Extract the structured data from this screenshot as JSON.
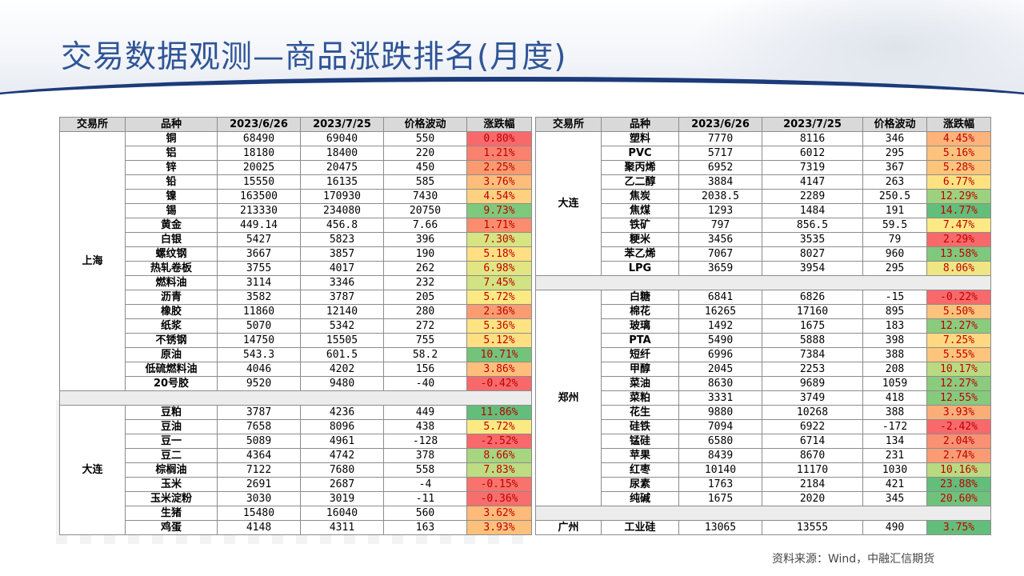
{
  "title": "交易数据观测—商品涨跌排名(月度)",
  "source": "资料来源：Wind，中融汇信期货",
  "headers": [
    "交易所",
    "品种",
    "2023/6/26",
    "2023/7/25",
    "价格波动",
    "涨跌幅"
  ],
  "left_table": {
    "groups": [
      {
        "exchange": "上海",
        "rows": [
          {
            "name": "铜",
            "p1": "68490",
            "p2": "69040",
            "diff": "550",
            "chg": "0.80%",
            "color": "#f8696b"
          },
          {
            "name": "铝",
            "p1": "18180",
            "p2": "18400",
            "diff": "220",
            "chg": "1.21%",
            "color": "#f9816d"
          },
          {
            "name": "锌",
            "p1": "20025",
            "p2": "20475",
            "diff": "450",
            "chg": "2.25%",
            "color": "#fa9a70"
          },
          {
            "name": "铅",
            "p1": "15550",
            "p2": "16135",
            "diff": "585",
            "chg": "3.76%",
            "color": "#fdbd7b"
          },
          {
            "name": "镍",
            "p1": "163500",
            "p2": "170930",
            "diff": "7430",
            "chg": "4.54%",
            "color": "#fed180"
          },
          {
            "name": "锡",
            "p1": "213330",
            "p2": "234080",
            "diff": "20750",
            "chg": "9.73%",
            "color": "#7fc97c"
          },
          {
            "name": "黄金",
            "p1": "449.14",
            "p2": "456.8",
            "diff": "7.66",
            "chg": "1.71%",
            "color": "#f98d6e"
          },
          {
            "name": "白银",
            "p1": "5427",
            "p2": "5823",
            "diff": "396",
            "chg": "7.30%",
            "color": "#d6e482"
          },
          {
            "name": "螺纹钢",
            "p1": "3667",
            "p2": "3857",
            "diff": "190",
            "chg": "5.18%",
            "color": "#fee082"
          },
          {
            "name": "热轧卷板",
            "p1": "3755",
            "p2": "4017",
            "diff": "262",
            "chg": "6.98%",
            "color": "#e1e683"
          },
          {
            "name": "燃料油",
            "p1": "3114",
            "p2": "3346",
            "diff": "232",
            "chg": "7.45%",
            "color": "#d1e382"
          },
          {
            "name": "沥青",
            "p1": "3582",
            "p2": "3787",
            "diff": "205",
            "chg": "5.72%",
            "color": "#fbe983"
          },
          {
            "name": "橡胶",
            "p1": "11860",
            "p2": "12140",
            "diff": "280",
            "chg": "2.36%",
            "color": "#fa9c71"
          },
          {
            "name": "纸浆",
            "p1": "5070",
            "p2": "5342",
            "diff": "272",
            "chg": "5.36%",
            "color": "#fee383"
          },
          {
            "name": "不锈钢",
            "p1": "14750",
            "p2": "15505",
            "diff": "755",
            "chg": "5.12%",
            "color": "#fedf82"
          },
          {
            "name": "原油",
            "p1": "543.3",
            "p2": "601.5",
            "diff": "58.2",
            "chg": "10.71%",
            "color": "#73c47b"
          },
          {
            "name": "低硫燃料油",
            "p1": "4046",
            "p2": "4202",
            "diff": "156",
            "chg": "3.86%",
            "color": "#fdbf7b"
          },
          {
            "name": "20号胶",
            "p1": "9520",
            "p2": "9480",
            "diff": "-40",
            "chg": "-0.42%",
            "color": "#f8696b"
          }
        ]
      },
      {
        "exchange": "大连",
        "rows": [
          {
            "name": "豆粕",
            "p1": "3787",
            "p2": "4236",
            "diff": "449",
            "chg": "11.86%",
            "color": "#63be7b"
          },
          {
            "name": "豆油",
            "p1": "7658",
            "p2": "8096",
            "diff": "438",
            "chg": "5.72%",
            "color": "#fbe983"
          },
          {
            "name": "豆一",
            "p1": "5089",
            "p2": "4961",
            "diff": "-128",
            "chg": "-2.52%",
            "color": "#f8696b"
          },
          {
            "name": "豆二",
            "p1": "4364",
            "p2": "4742",
            "diff": "378",
            "chg": "8.66%",
            "color": "#a7d580"
          },
          {
            "name": "棕榈油",
            "p1": "7122",
            "p2": "7680",
            "diff": "558",
            "chg": "7.83%",
            "color": "#bedc81"
          },
          {
            "name": "玉米",
            "p1": "2691",
            "p2": "2687",
            "diff": "-4",
            "chg": "-0.15%",
            "color": "#f8736c"
          },
          {
            "name": "玉米淀粉",
            "p1": "3030",
            "p2": "3019",
            "diff": "-11",
            "chg": "-0.36%",
            "color": "#f86e6c"
          },
          {
            "name": "生猪",
            "p1": "15480",
            "p2": "16040",
            "diff": "560",
            "chg": "3.62%",
            "color": "#fdba7a"
          },
          {
            "name": "鸡蛋",
            "p1": "4148",
            "p2": "4311",
            "diff": "163",
            "chg": "3.93%",
            "color": "#fdc17c"
          }
        ]
      }
    ]
  },
  "right_table": {
    "groups": [
      {
        "exchange": "大连",
        "rows": [
          {
            "name": "塑料",
            "p1": "7770",
            "p2": "8116",
            "diff": "346",
            "chg": "4.45%",
            "color": "#fdb37a"
          },
          {
            "name": "PVC",
            "p1": "5717",
            "p2": "6012",
            "diff": "295",
            "chg": "5.16%",
            "color": "#fdc27c"
          },
          {
            "name": "聚丙烯",
            "p1": "6952",
            "p2": "7319",
            "diff": "367",
            "chg": "5.28%",
            "color": "#fdc47c"
          },
          {
            "name": "乙二醇",
            "p1": "3884",
            "p2": "4147",
            "diff": "263",
            "chg": "6.77%",
            "color": "#fee282"
          },
          {
            "name": "焦炭",
            "p1": "2038.5",
            "p2": "2289",
            "diff": "250.5",
            "chg": "12.29%",
            "color": "#9cd27f"
          },
          {
            "name": "焦煤",
            "p1": "1293",
            "p2": "1484",
            "diff": "191",
            "chg": "14.77%",
            "color": "#63be7b"
          },
          {
            "name": "铁矿",
            "p1": "797",
            "p2": "856.5",
            "diff": "59.5",
            "chg": "7.47%",
            "color": "#fbe983"
          },
          {
            "name": "粳米",
            "p1": "3456",
            "p2": "3535",
            "diff": "79",
            "chg": "2.29%",
            "color": "#f8696b"
          },
          {
            "name": "苯乙烯",
            "p1": "7067",
            "p2": "8027",
            "diff": "960",
            "chg": "13.58%",
            "color": "#7fc87d"
          },
          {
            "name": "LPG",
            "p1": "3659",
            "p2": "3954",
            "diff": "295",
            "chg": "8.06%",
            "color": "#eee683"
          }
        ]
      },
      {
        "exchange": "郑州",
        "rows": [
          {
            "name": "白糖",
            "p1": "6841",
            "p2": "6826",
            "diff": "-15",
            "chg": "-0.22%",
            "color": "#f8696b"
          },
          {
            "name": "棉花",
            "p1": "16265",
            "p2": "17160",
            "diff": "895",
            "chg": "5.50%",
            "color": "#fdc37c"
          },
          {
            "name": "玻璃",
            "p1": "1492",
            "p2": "1675",
            "diff": "183",
            "chg": "12.27%",
            "color": "#8acb7e"
          },
          {
            "name": "PTA",
            "p1": "5490",
            "p2": "5888",
            "diff": "398",
            "chg": "7.25%",
            "color": "#fed981"
          },
          {
            "name": "短纤",
            "p1": "6996",
            "p2": "7384",
            "diff": "388",
            "chg": "5.55%",
            "color": "#fdc47c"
          },
          {
            "name": "甲醇",
            "p1": "2045",
            "p2": "2253",
            "diff": "208",
            "chg": "10.17%",
            "color": "#b9da81"
          },
          {
            "name": "菜油",
            "p1": "8630",
            "p2": "9689",
            "diff": "1059",
            "chg": "12.27%",
            "color": "#8acb7e"
          },
          {
            "name": "菜粕",
            "p1": "3331",
            "p2": "3749",
            "diff": "418",
            "chg": "12.55%",
            "color": "#86ca7e"
          },
          {
            "name": "花生",
            "p1": "9880",
            "p2": "10268",
            "diff": "388",
            "chg": "3.93%",
            "color": "#fbad78"
          },
          {
            "name": "硅铁",
            "p1": "7094",
            "p2": "6922",
            "diff": "-172",
            "chg": "-2.42%",
            "color": "#f8696b"
          },
          {
            "name": "锰硅",
            "p1": "6580",
            "p2": "6714",
            "diff": "134",
            "chg": "2.04%",
            "color": "#f99172"
          },
          {
            "name": "苹果",
            "p1": "8439",
            "p2": "8670",
            "diff": "231",
            "chg": "2.74%",
            "color": "#fa9b74"
          },
          {
            "name": "红枣",
            "p1": "10140",
            "p2": "11170",
            "diff": "1030",
            "chg": "10.16%",
            "color": "#b9da81"
          },
          {
            "name": "尿素",
            "p1": "1763",
            "p2": "2184",
            "diff": "421",
            "chg": "23.88%",
            "color": "#63be7b"
          },
          {
            "name": "纯碱",
            "p1": "1675",
            "p2": "2020",
            "diff": "345",
            "chg": "20.60%",
            "color": "#6fc27c"
          }
        ]
      },
      {
        "exchange": "广州",
        "rows": [
          {
            "name": "工业硅",
            "p1": "13065",
            "p2": "13555",
            "diff": "490",
            "chg": "3.75%",
            "color": "#63be7b"
          }
        ]
      }
    ]
  }
}
